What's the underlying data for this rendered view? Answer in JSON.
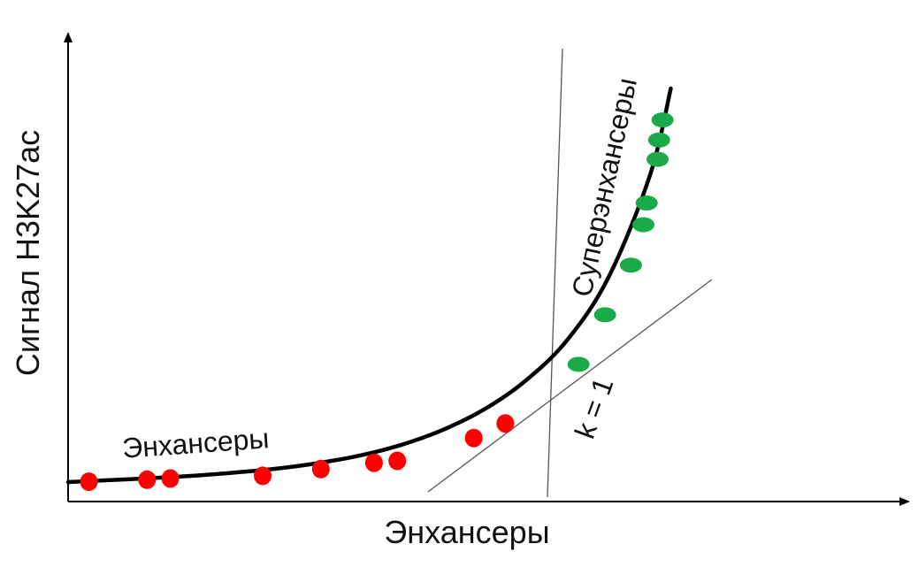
{
  "chart_data": {
    "type": "scatter",
    "title": "",
    "xlabel": "Энхансеры",
    "ylabel": "Сигнал H3K27ac",
    "axes": {
      "x_ticks": false,
      "y_ticks": false,
      "grid": false
    },
    "colors": {
      "enhancer": "#ff0000",
      "super_enhancer": "#1aaa4a",
      "curve": "#000000",
      "tangent": "#555555"
    },
    "curve": {
      "description_label": "",
      "x": [
        0,
        5,
        10,
        15,
        20,
        25,
        30,
        35,
        40,
        45,
        50,
        55,
        60,
        65,
        70,
        72.5
      ],
      "y": [
        0.0,
        0.5,
        1.0,
        1.6,
        2.4,
        3.4,
        4.8,
        6.7,
        9.4,
        13.2,
        18.4,
        25.7,
        36.0,
        52.0,
        78.0,
        100.0
      ]
    },
    "series": [
      {
        "name": "",
        "class": "enhancer",
        "points": [
          {
            "x": 2.5,
            "y": 0.1
          },
          {
            "x": 9.5,
            "y": 0.6
          },
          {
            "x": 12.3,
            "y": 0.9
          },
          {
            "x": 23.4,
            "y": 1.6
          },
          {
            "x": 30.4,
            "y": 3.3
          },
          {
            "x": 36.8,
            "y": 4.9
          },
          {
            "x": 39.6,
            "y": 5.4
          },
          {
            "x": 48.8,
            "y": 11.2
          },
          {
            "x": 52.6,
            "y": 14.9
          }
        ]
      },
      {
        "name": "",
        "class": "super_enhancer",
        "points": [
          {
            "x": 61.4,
            "y": 29.9
          },
          {
            "x": 64.6,
            "y": 42.5
          },
          {
            "x": 67.7,
            "y": 55.1
          },
          {
            "x": 69.2,
            "y": 65.4
          },
          {
            "x": 69.6,
            "y": 70.9
          },
          {
            "x": 70.9,
            "y": 82.0
          },
          {
            "x": 71.1,
            "y": 86.9
          },
          {
            "x": 71.5,
            "y": 92.0
          }
        ]
      }
    ],
    "annotations": [
      {
        "id": "enhancers",
        "text": "Энхансеры"
      },
      {
        "id": "super",
        "text": "Суперэнхансеры"
      },
      {
        "id": "slope",
        "text": "k = 1"
      }
    ]
  }
}
